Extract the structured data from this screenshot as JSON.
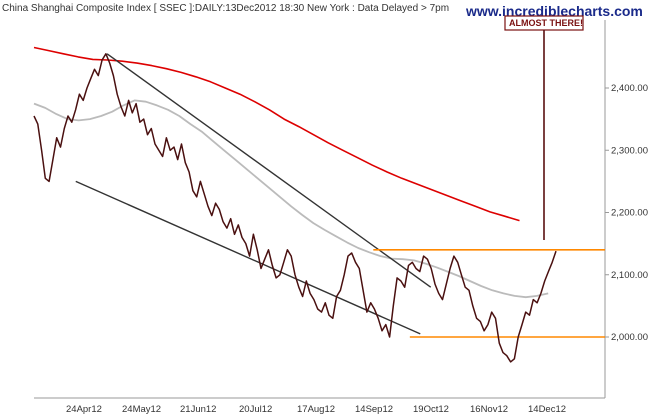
{
  "header": {
    "title": "China Shanghai Composite Index [ SSEC ]:DAILY:13Dec2012 18:30 New York : Data Delayed > 7pm",
    "watermark": "www.incrediblecharts.com"
  },
  "annotation": {
    "text": "ALMOST THERE!"
  },
  "colors": {
    "price": "#4a1010",
    "ma_long": "#dd0000",
    "ma_short": "#bbbbbb",
    "trendline": "#333333",
    "support": "#ff8800",
    "axis": "#999999"
  },
  "chart_data": {
    "type": "line",
    "title": "China Shanghai Composite Index [ SSEC ]:DAILY:13Dec2012 18:30 New York : Data Delayed > 7pm",
    "xlabel": "",
    "ylabel": "",
    "x_ticks": [
      "24Apr12",
      "24May12",
      "21Jun12",
      "20Jul12",
      "17Aug12",
      "14Sep12",
      "19Oct12",
      "16Nov12",
      "14Dec12"
    ],
    "y_ticks": [
      "2,000.00",
      "2,100.00",
      "2,200.00",
      "2,300.00",
      "2,400.00"
    ],
    "ylim": [
      1880,
      2500
    ],
    "grid": false,
    "series": [
      {
        "role": "price",
        "values": [
          2355,
          2342,
          2300,
          2255,
          2250,
          2285,
          2320,
          2305,
          2335,
          2355,
          2345,
          2365,
          2390,
          2380,
          2400,
          2415,
          2430,
          2420,
          2445,
          2455,
          2440,
          2420,
          2390,
          2370,
          2355,
          2380,
          2360,
          2375,
          2345,
          2350,
          2325,
          2335,
          2310,
          2300,
          2290,
          2320,
          2300,
          2305,
          2285,
          2310,
          2280,
          2265,
          2235,
          2225,
          2250,
          2230,
          2210,
          2195,
          2215,
          2205,
          2185,
          2175,
          2190,
          2165,
          2180,
          2160,
          2150,
          2130,
          2165,
          2140,
          2110,
          2125,
          2140,
          2115,
          2095,
          2100,
          2120,
          2140,
          2130,
          2100,
          2080,
          2065,
          2090,
          2070,
          2060,
          2045,
          2040,
          2055,
          2035,
          2030,
          2065,
          2075,
          2100,
          2130,
          2135,
          2120,
          2110,
          2075,
          2040,
          2055,
          2045,
          2030,
          2010,
          2020,
          2000,
          2050,
          2095,
          2090,
          2080,
          2115,
          2120,
          2110,
          2105,
          2130,
          2125,
          2110,
          2085,
          2070,
          2060,
          2085,
          2110,
          2130,
          2120,
          2100,
          2080,
          2075,
          2050,
          2030,
          2025,
          2010,
          2020,
          2040,
          2030,
          1990,
          1975,
          1970,
          1960,
          1965,
          2000,
          2020,
          2040,
          2035,
          2060,
          2055,
          2070,
          2090,
          2105,
          2120,
          2138
        ]
      },
      {
        "role": "ma_long",
        "values": [
          2465,
          2460,
          2455,
          2450,
          2446,
          2445,
          2443,
          2440,
          2436,
          2431,
          2425,
          2418,
          2410,
          2400,
          2390,
          2378,
          2365,
          2350,
          2338,
          2325,
          2312,
          2300,
          2288,
          2276,
          2265,
          2255,
          2246,
          2237,
          2228,
          2219,
          2210,
          2201,
          2194,
          2187
        ]
      },
      {
        "role": "ma_short",
        "values": [
          2375,
          2368,
          2358,
          2350,
          2348,
          2350,
          2355,
          2362,
          2372,
          2380,
          2378,
          2372,
          2365,
          2355,
          2342,
          2330,
          2315,
          2300,
          2285,
          2270,
          2255,
          2240,
          2225,
          2210,
          2196,
          2183,
          2172,
          2162,
          2152,
          2143,
          2136,
          2130,
          2126,
          2125,
          2123,
          2118,
          2112,
          2105,
          2098,
          2090,
          2082,
          2075,
          2070,
          2066,
          2064,
          2066,
          2070
        ]
      }
    ],
    "trendlines": [
      {
        "from": [
          0.08,
          2250
        ],
        "to": [
          0.74,
          2005
        ]
      },
      {
        "from": [
          0.14,
          2455
        ],
        "to": [
          0.76,
          2080
        ]
      }
    ],
    "support_levels": [
      {
        "value": 2140,
        "x_start": 0.65
      },
      {
        "value": 2000,
        "x_start": 0.72
      }
    ]
  }
}
